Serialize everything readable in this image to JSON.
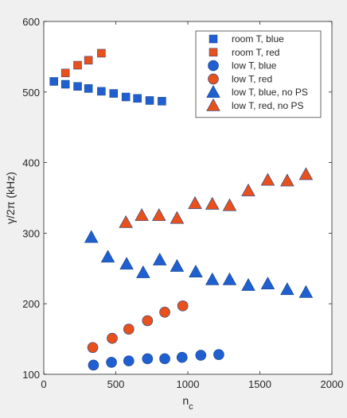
{
  "chart_data": {
    "type": "scatter",
    "title": "",
    "xlabel": "n",
    "xlabel_sub": "c",
    "ylabel": "γ/2π (kHz)",
    "xlim": [
      0,
      2000
    ],
    "ylim": [
      100,
      600
    ],
    "xticks": [
      0,
      500,
      1000,
      1500,
      2000
    ],
    "yticks": [
      100,
      200,
      300,
      400,
      500,
      600
    ],
    "grid": false,
    "legend_position": "top-right",
    "series": [
      {
        "name": "room T, blue",
        "marker": "square",
        "color": "#1f5fcf",
        "x": [
          70,
          150,
          235,
          310,
          400,
          485,
          570,
          650,
          735,
          820
        ],
        "y": [
          515,
          511,
          508,
          505,
          501,
          498,
          493,
          491,
          488,
          487
        ]
      },
      {
        "name": "room T, red",
        "marker": "square",
        "color": "#e8501c",
        "x": [
          150,
          235,
          310,
          400
        ],
        "y": [
          527,
          538,
          545,
          555
        ]
      },
      {
        "name": "low T, blue",
        "marker": "circle",
        "color": "#1f5fcf",
        "x": [
          345,
          470,
          590,
          720,
          840,
          960,
          1090,
          1215
        ],
        "y": [
          113,
          117,
          119,
          122,
          122,
          124,
          127,
          128
        ]
      },
      {
        "name": "low T, red",
        "marker": "circle",
        "color": "#e8501c",
        "x": [
          340,
          475,
          590,
          720,
          840,
          965
        ],
        "y": [
          138,
          151,
          164,
          176,
          188,
          197
        ]
      },
      {
        "name": "low T, blue, no PS",
        "marker": "triangle",
        "color": "#1f5fcf",
        "x": [
          330,
          445,
          575,
          690,
          805,
          925,
          1055,
          1170,
          1290,
          1420,
          1555,
          1690,
          1820
        ],
        "y": [
          294,
          266,
          256,
          244,
          262,
          253,
          245,
          234,
          234,
          226,
          228,
          220,
          216
        ]
      },
      {
        "name": "low T, red, no PS",
        "marker": "triangle",
        "color": "#e8501c",
        "x": [
          570,
          680,
          800,
          925,
          1050,
          1170,
          1290,
          1420,
          1555,
          1690,
          1820
        ],
        "y": [
          315,
          325,
          325,
          321,
          342,
          341,
          339,
          360,
          375,
          374,
          383
        ]
      }
    ]
  }
}
